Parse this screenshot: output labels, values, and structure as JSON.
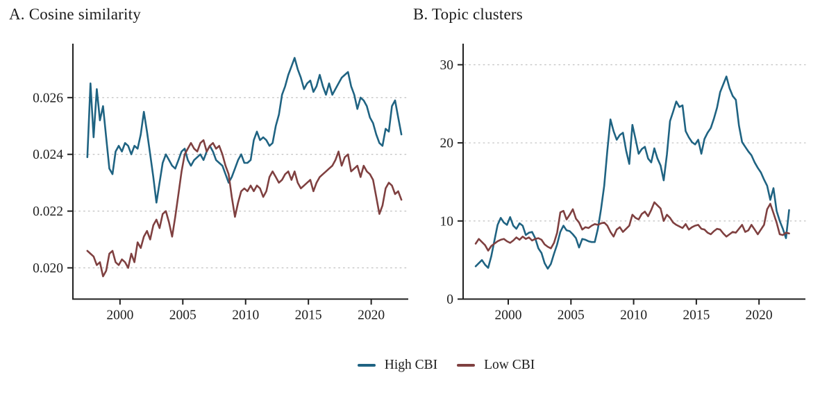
{
  "figure": {
    "legend": [
      {
        "label": "High CBI",
        "color": "#1f6382"
      },
      {
        "label": "Low CBI",
        "color": "#7f4040"
      }
    ],
    "colors": {
      "high_cbi": "#1f6382",
      "low_cbi": "#7f4040",
      "grid": "#c4c4c4",
      "axis": "#1f1f1f",
      "background": "#ffffff"
    }
  },
  "chart_data": [
    {
      "type": "line",
      "title": "A. Cosine similarity",
      "xlabel": "",
      "ylabel": "",
      "x_ticks": [
        2000,
        2005,
        2010,
        2015,
        2020
      ],
      "x_tick_labels": [
        "2000",
        "2005",
        "2010",
        "2015",
        "2020"
      ],
      "y_ticks": [
        0.02,
        0.022,
        0.024,
        0.026
      ],
      "y_tick_labels": [
        "0.020",
        "0.022",
        "0.024",
        "0.026"
      ],
      "xlim": [
        1996.25,
        2022.95
      ],
      "ylim": [
        0.0189,
        0.0279
      ],
      "grid": "horizontal-dotted",
      "legend_position": "bottom-center",
      "x_start": 1997.4,
      "x_step": 0.25,
      "series": [
        {
          "name": "High CBI",
          "color": "#1f6382",
          "values": [
            0.0239,
            0.0265,
            0.0246,
            0.0263,
            0.0252,
            0.0257,
            0.0246,
            0.0235,
            0.0233,
            0.0241,
            0.0243,
            0.0241,
            0.0244,
            0.0243,
            0.024,
            0.0243,
            0.0242,
            0.0247,
            0.0255,
            0.0248,
            0.024,
            0.0232,
            0.0223,
            0.023,
            0.0237,
            0.024,
            0.0238,
            0.0236,
            0.0235,
            0.0238,
            0.0241,
            0.0242,
            0.0238,
            0.0236,
            0.0238,
            0.0239,
            0.024,
            0.0238,
            0.0241,
            0.0243,
            0.0241,
            0.0238,
            0.0237,
            0.0236,
            0.0233,
            0.023,
            0.0232,
            0.0235,
            0.0238,
            0.024,
            0.0237,
            0.0237,
            0.0238,
            0.0245,
            0.0248,
            0.0245,
            0.0246,
            0.0245,
            0.0243,
            0.0244,
            0.025,
            0.0254,
            0.0261,
            0.0264,
            0.0268,
            0.0271,
            0.0274,
            0.027,
            0.0267,
            0.0263,
            0.0265,
            0.0266,
            0.0262,
            0.0264,
            0.0268,
            0.0264,
            0.0261,
            0.0265,
            0.0261,
            0.0263,
            0.0265,
            0.0267,
            0.0268,
            0.0269,
            0.0264,
            0.0261,
            0.0256,
            0.026,
            0.0259,
            0.0257,
            0.0253,
            0.0251,
            0.0247,
            0.0244,
            0.0243,
            0.0249,
            0.0248,
            0.0257,
            0.0259,
            0.0253,
            0.0247
          ]
        },
        {
          "name": "Low CBI",
          "color": "#7f4040",
          "values": [
            0.0206,
            0.0205,
            0.0204,
            0.0201,
            0.0202,
            0.0197,
            0.0199,
            0.0205,
            0.0206,
            0.0202,
            0.0201,
            0.0203,
            0.0202,
            0.02,
            0.0205,
            0.0202,
            0.0209,
            0.0207,
            0.0211,
            0.0213,
            0.021,
            0.0215,
            0.0217,
            0.0214,
            0.0219,
            0.022,
            0.0216,
            0.0211,
            0.0218,
            0.0226,
            0.0234,
            0.024,
            0.0242,
            0.0244,
            0.0242,
            0.0241,
            0.0244,
            0.0245,
            0.0241,
            0.0243,
            0.0244,
            0.0242,
            0.0243,
            0.024,
            0.0236,
            0.0233,
            0.0225,
            0.0218,
            0.0223,
            0.0227,
            0.0228,
            0.0227,
            0.0229,
            0.0227,
            0.0229,
            0.0228,
            0.0225,
            0.0227,
            0.0232,
            0.0234,
            0.0232,
            0.023,
            0.0231,
            0.0233,
            0.0234,
            0.0231,
            0.0234,
            0.023,
            0.0228,
            0.0229,
            0.023,
            0.0231,
            0.0227,
            0.023,
            0.0232,
            0.0233,
            0.0234,
            0.0235,
            0.0236,
            0.0238,
            0.0241,
            0.0236,
            0.0239,
            0.024,
            0.0234,
            0.0235,
            0.0236,
            0.0232,
            0.0236,
            0.0234,
            0.0233,
            0.0231,
            0.0225,
            0.0219,
            0.0222,
            0.0228,
            0.023,
            0.0229,
            0.0226,
            0.0227,
            0.0224
          ]
        }
      ]
    },
    {
      "type": "line",
      "title": "B. Topic clusters",
      "xlabel": "",
      "ylabel": "",
      "x_ticks": [
        2000,
        2005,
        2010,
        2015,
        2020
      ],
      "x_tick_labels": [
        "2000",
        "2005",
        "2010",
        "2015",
        "2020"
      ],
      "y_ticks": [
        0,
        10,
        20,
        30
      ],
      "y_tick_labels": [
        "0",
        "10",
        "20",
        "30"
      ],
      "xlim": [
        1996.4,
        2023.7
      ],
      "ylim": [
        0,
        32.7
      ],
      "grid": "horizontal-dotted",
      "legend_position": "bottom-center",
      "x_start": 1997.4,
      "x_step": 0.25,
      "series": [
        {
          "name": "High CBI",
          "color": "#1f6382",
          "values": [
            4.2,
            4.6,
            5.0,
            4.4,
            4.0,
            5.5,
            7.5,
            9.5,
            10.4,
            9.8,
            9.5,
            10.5,
            9.4,
            9.0,
            9.7,
            9.4,
            8.2,
            8.5,
            8.6,
            7.8,
            6.5,
            5.9,
            4.6,
            3.9,
            4.5,
            5.8,
            7.0,
            8.6,
            9.4,
            8.8,
            8.7,
            8.3,
            7.8,
            6.6,
            7.7,
            7.6,
            7.4,
            7.3,
            7.3,
            9.0,
            11.5,
            14.5,
            19.0,
            23.0,
            21.5,
            20.4,
            21.0,
            21.3,
            19.0,
            17.3,
            22.3,
            20.5,
            18.6,
            19.2,
            19.5,
            18.0,
            17.5,
            19.3,
            18.0,
            17.1,
            15.2,
            18.5,
            22.8,
            24.0,
            25.3,
            24.6,
            24.8,
            21.5,
            20.7,
            20.1,
            19.8,
            20.4,
            18.6,
            20.5,
            21.3,
            21.9,
            23.1,
            24.5,
            26.5,
            27.5,
            28.5,
            27.0,
            26.0,
            25.5,
            22.2,
            20.1,
            19.5,
            18.9,
            18.4,
            17.5,
            16.8,
            16.2,
            15.3,
            14.5,
            12.7,
            14.2,
            11.3,
            10.0,
            9.0,
            7.8,
            11.4
          ]
        },
        {
          "name": "Low CBI",
          "color": "#7f4040",
          "values": [
            7.1,
            7.7,
            7.3,
            6.9,
            6.2,
            6.8,
            7.1,
            7.4,
            7.6,
            7.7,
            7.4,
            7.2,
            7.5,
            7.9,
            7.6,
            8.0,
            7.7,
            7.9,
            7.5,
            7.7,
            7.8,
            7.6,
            7.0,
            6.7,
            6.5,
            7.2,
            8.5,
            11.1,
            11.3,
            10.2,
            10.8,
            11.5,
            10.3,
            9.8,
            8.9,
            9.2,
            9.1,
            9.4,
            9.6,
            9.5,
            9.7,
            9.8,
            9.4,
            8.6,
            8.0,
            8.9,
            9.2,
            8.6,
            9.0,
            9.4,
            10.8,
            10.4,
            10.2,
            10.9,
            11.2,
            10.6,
            11.4,
            12.4,
            12.0,
            11.6,
            10.0,
            10.8,
            10.4,
            9.8,
            9.5,
            9.3,
            9.1,
            9.6,
            8.9,
            9.2,
            9.4,
            9.5,
            9.0,
            8.9,
            8.5,
            8.3,
            8.7,
            9.0,
            8.9,
            8.4,
            8.0,
            8.3,
            8.6,
            8.5,
            9.0,
            9.5,
            8.6,
            8.8,
            9.5,
            8.9,
            8.3,
            8.9,
            9.5,
            11.5,
            12.2,
            11.0,
            9.8,
            8.3,
            8.2,
            8.5,
            8.4
          ]
        }
      ]
    }
  ]
}
